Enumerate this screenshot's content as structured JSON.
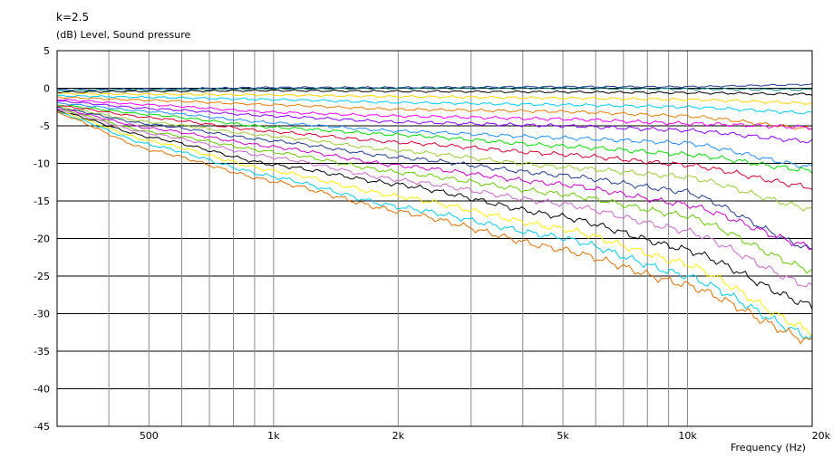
{
  "chart_data": {
    "type": "line",
    "title": "k=2.5",
    "ylabel": "(dB)  Level, Sound pressure",
    "xlabel": "Frequency  (Hz)",
    "x_scale": "log",
    "xlim": [
      300,
      20000
    ],
    "ylim": [
      -45,
      5
    ],
    "grid": true,
    "y_ticks": [
      5,
      0,
      -5,
      -10,
      -15,
      -20,
      -25,
      -30,
      -35,
      -40,
      -45
    ],
    "x_ticks": [
      {
        "value": 500,
        "label": "500"
      },
      {
        "value": 1000,
        "label": "1k"
      },
      {
        "value": 2000,
        "label": "2k"
      },
      {
        "value": 5000,
        "label": "5k"
      },
      {
        "value": 10000,
        "label": "10k"
      },
      {
        "value": 20000,
        "label": "20k"
      }
    ],
    "x_minor_grid": [
      400,
      600,
      700,
      800,
      900,
      3000,
      4000,
      6000,
      7000,
      8000,
      9000
    ],
    "x": [
      300,
      500,
      1000,
      2000,
      5000,
      10000,
      20000
    ],
    "series": [
      {
        "color": "#1f3a93",
        "values": [
          -0.2,
          -0.1,
          0.1,
          0.1,
          0.2,
          0.2,
          0.5
        ]
      },
      {
        "color": "#008080",
        "values": [
          -0.3,
          -0.2,
          -0.1,
          0.0,
          0.0,
          -0.1,
          -0.2
        ]
      },
      {
        "color": "#000000",
        "values": [
          -0.5,
          -0.4,
          -0.3,
          -0.4,
          -0.5,
          -0.6,
          -0.8
        ]
      },
      {
        "color": "#ffd700",
        "values": [
          -0.7,
          -0.8,
          -0.9,
          -1.1,
          -1.3,
          -1.5,
          -2.0
        ]
      },
      {
        "color": "#00ccff",
        "values": [
          -1.0,
          -1.2,
          -1.5,
          -1.9,
          -2.2,
          -2.5,
          -3.3
        ]
      },
      {
        "color": "#e87e04",
        "values": [
          -1.2,
          -1.6,
          -2.2,
          -2.8,
          -3.1,
          -3.7,
          -5.4
        ]
      },
      {
        "color": "#ff00ff",
        "values": [
          -1.5,
          -2.2,
          -3.2,
          -3.7,
          -4.1,
          -4.7,
          -5.2
        ]
      },
      {
        "color": "#8b00ff",
        "values": [
          -1.7,
          -2.7,
          -3.7,
          -4.5,
          -5.0,
          -5.6,
          -7.1
        ]
      },
      {
        "color": "#1e90ff",
        "values": [
          -2.0,
          -3.1,
          -4.6,
          -5.7,
          -6.6,
          -7.3,
          -10.5
        ]
      },
      {
        "color": "#00dd00",
        "values": [
          -2.2,
          -3.5,
          -5.2,
          -6.2,
          -7.7,
          -8.8,
          -11.0
        ]
      },
      {
        "color": "#dd0033",
        "values": [
          -2.3,
          -3.9,
          -5.8,
          -7.2,
          -8.8,
          -10.2,
          -13.2
        ]
      },
      {
        "color": "#9acd32",
        "values": [
          -2.5,
          -4.5,
          -6.4,
          -8.3,
          -10.5,
          -11.8,
          -16.1
        ]
      },
      {
        "color": "#1f3a93",
        "values": [
          -2.6,
          -4.8,
          -7.0,
          -9.2,
          -11.6,
          -13.8,
          -21.5
        ]
      },
      {
        "color": "#cc00cc",
        "values": [
          -2.7,
          -5.3,
          -7.8,
          -10.3,
          -12.8,
          -15.5,
          -21.2
        ]
      },
      {
        "color": "#66cc00",
        "values": [
          -2.8,
          -5.8,
          -8.5,
          -11.2,
          -14.1,
          -17.0,
          -24.3
        ]
      },
      {
        "color": "#cc66cc",
        "values": [
          -2.9,
          -6.0,
          -9.2,
          -12.2,
          -15.4,
          -19.0,
          -26.5
        ]
      },
      {
        "color": "#000000",
        "values": [
          -3.0,
          -6.5,
          -10.2,
          -12.8,
          -17.1,
          -21.5,
          -29.0
        ]
      },
      {
        "color": "#ffee00",
        "values": [
          -3.1,
          -7.0,
          -11.0,
          -14.4,
          -18.7,
          -23.4,
          -32.4
        ]
      },
      {
        "color": "#00ccee",
        "values": [
          -3.2,
          -7.5,
          -11.8,
          -15.8,
          -19.9,
          -25.0,
          -33.2
        ]
      },
      {
        "color": "#e07000",
        "values": [
          -3.3,
          -8.2,
          -12.4,
          -16.4,
          -21.5,
          -26.2,
          -33.8
        ]
      }
    ]
  }
}
